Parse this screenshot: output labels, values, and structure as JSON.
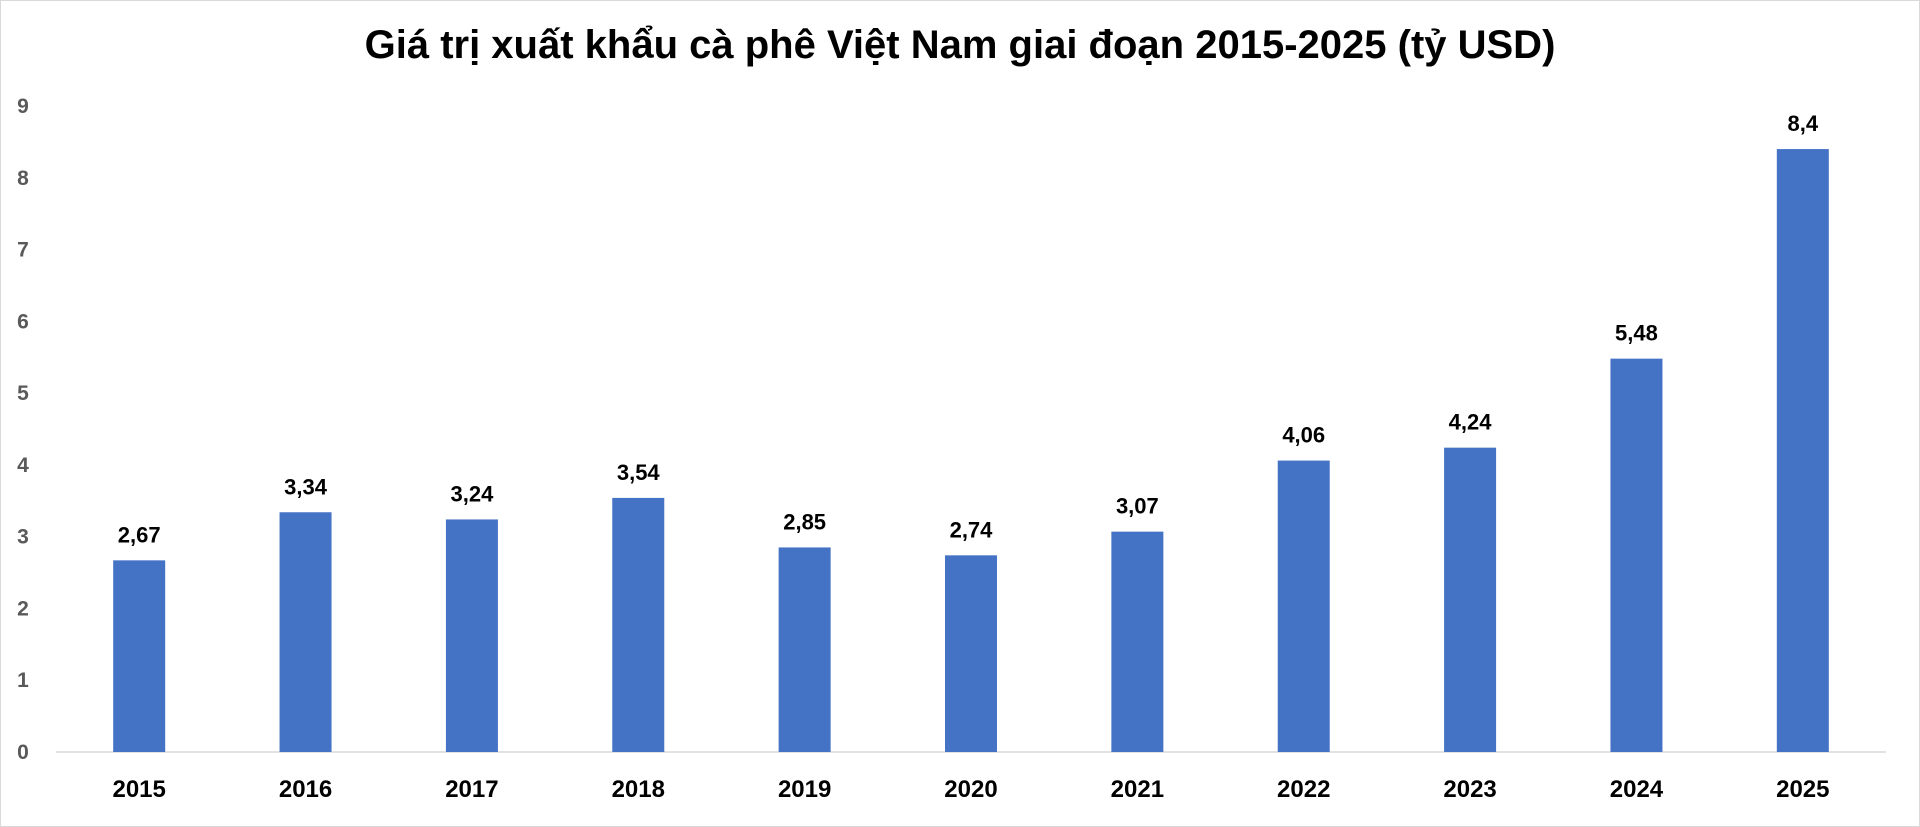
{
  "chart_data": {
    "type": "bar",
    "title": "Giá trị xuất khẩu cà phê Việt Nam giai đoạn 2015-2025 (tỷ USD)",
    "xlabel": "",
    "ylabel": "",
    "categories": [
      "2015",
      "2016",
      "2017",
      "2018",
      "2019",
      "2020",
      "2021",
      "2022",
      "2023",
      "2024",
      "2025"
    ],
    "values": [
      2.67,
      3.34,
      3.24,
      3.54,
      2.85,
      2.74,
      3.07,
      4.06,
      4.24,
      5.48,
      8.4
    ],
    "data_labels": [
      "2,67",
      "3,34",
      "3,24",
      "3,54",
      "2,85",
      "2,74",
      "3,07",
      "4,06",
      "4,24",
      "5,48",
      "8,4"
    ],
    "ylim": [
      0,
      9
    ],
    "yticks": [
      "0",
      "1",
      "2",
      "3",
      "4",
      "5",
      "6",
      "7",
      "8",
      "9"
    ],
    "grid": false,
    "legend": "none",
    "bar_color": "#4472c4"
  }
}
